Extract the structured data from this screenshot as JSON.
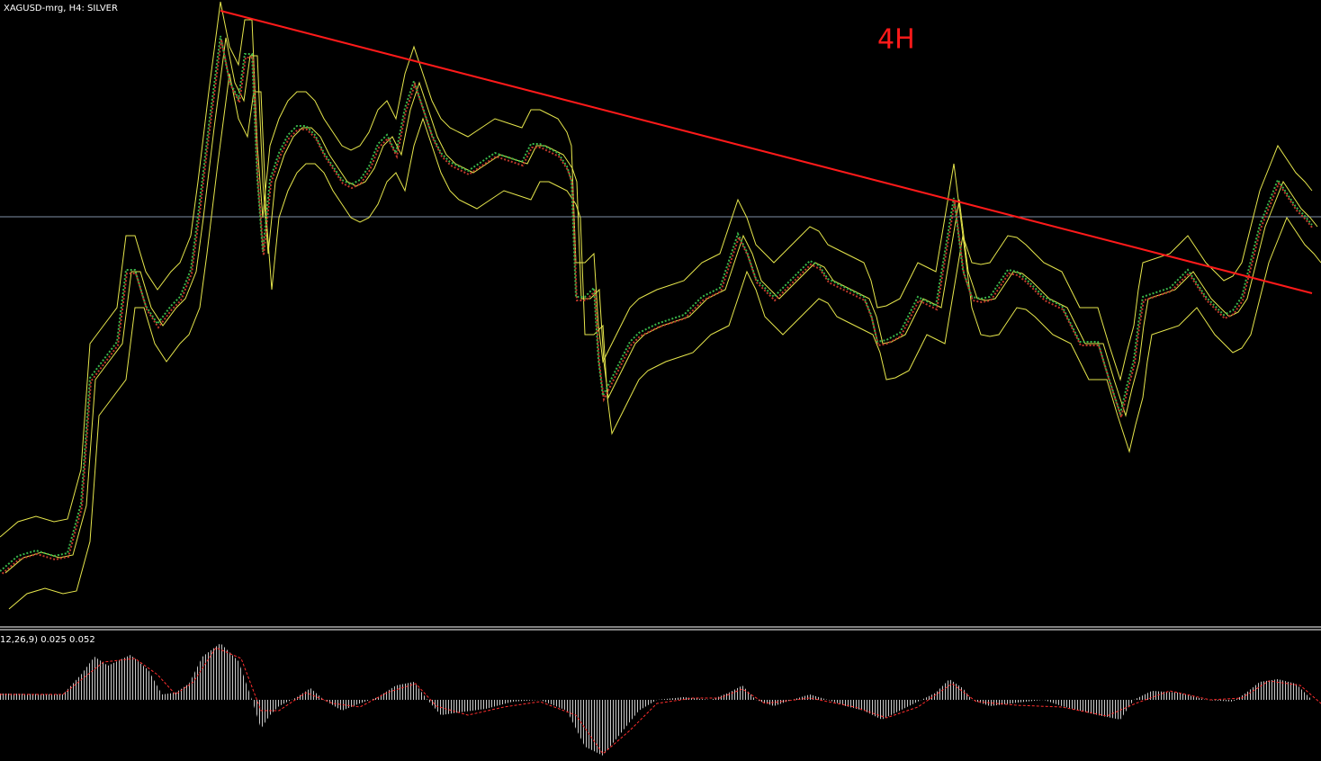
{
  "header": {
    "symbol_label": "XAGUSD-mrg, H4:  SILVER"
  },
  "annotation": "4H",
  "indicator": {
    "label": "12,26,9) 0.025 0.052"
  }
}
